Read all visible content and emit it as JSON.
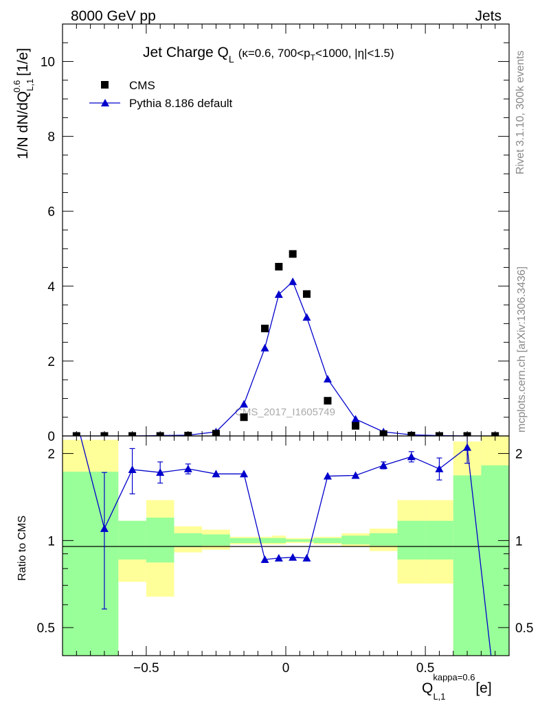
{
  "header": {
    "left": "8000 GeV pp",
    "right": "Jets"
  },
  "side_labels": {
    "rivet": "Rivet 3.1.10,  300k events",
    "mcplots": "mcplots.cern.ch [arXiv:1306.3436]"
  },
  "watermark": "CMS_2017_I1605749",
  "title": {
    "main": "Jet Charge Q",
    "main_sub": "L",
    "cond": "(κ=0.6, 700<p",
    "cond_sub": "T",
    "cond_tail": "<1000, |η|<1.5)"
  },
  "axes": {
    "ylabel": {
      "pre": "1/N dN/dQ",
      "sup": "0.6",
      "sub": "L,1",
      "post": " [1/e]"
    },
    "ratio_ylabel": "Ratio to CMS",
    "xlabel": {
      "pre": "Q",
      "sup": "kappa=0.6",
      "sub": "L,1",
      "post": " [e]"
    }
  },
  "legend": [
    {
      "label": "CMS",
      "marker": "square",
      "color": "#000000"
    },
    {
      "label": "Pythia 8.186 default",
      "marker": "triangle",
      "color": "#0000cc"
    }
  ],
  "colors": {
    "mc": "#0000cc",
    "data": "#000000",
    "band_inner": "#99ff99",
    "band_outer": "#ffff99"
  },
  "chart_data": {
    "type": "scatter",
    "x_ticks": [
      "−0.5",
      "0",
      "0.5"
    ],
    "main": {
      "xlim": [
        -0.8,
        0.8
      ],
      "ylim": [
        0,
        11
      ],
      "y_ticks": [
        "0",
        "2",
        "4",
        "6",
        "8",
        "10"
      ],
      "series": [
        {
          "name": "CMS",
          "x": [
            -0.75,
            -0.65,
            -0.55,
            -0.45,
            -0.35,
            -0.25,
            -0.15,
            -0.075,
            -0.025,
            0.025,
            0.075,
            0.15,
            0.25,
            0.35,
            0.45,
            0.55,
            0.65,
            0.75
          ],
          "y": [
            0.0,
            0.0,
            0.0,
            0.0,
            0.01,
            0.06,
            0.5,
            2.87,
            4.52,
            4.86,
            3.79,
            0.94,
            0.27,
            0.05,
            0.01,
            0.0,
            0.0,
            0.0
          ]
        },
        {
          "name": "Pythia 8.186 default",
          "x": [
            -0.75,
            -0.65,
            -0.55,
            -0.45,
            -0.35,
            -0.25,
            -0.15,
            -0.075,
            -0.025,
            0.025,
            0.075,
            0.15,
            0.25,
            0.35,
            0.45,
            0.55,
            0.65,
            0.75
          ],
          "y": [
            0.0,
            0.0,
            0.0,
            0.01,
            0.02,
            0.11,
            0.85,
            2.35,
            3.78,
            4.12,
            3.17,
            1.52,
            0.45,
            0.11,
            0.03,
            0.01,
            0.0,
            0.0
          ]
        }
      ]
    },
    "ratio": {
      "ylim": [
        0.4,
        2.3
      ],
      "log": true,
      "y_ticks": [
        "0.5",
        "1",
        "2"
      ],
      "mc": {
        "x": [
          -0.75,
          -0.65,
          -0.55,
          -0.45,
          -0.35,
          -0.25,
          -0.15,
          -0.075,
          -0.025,
          0.025,
          0.075,
          0.15,
          0.25,
          0.35,
          0.45,
          0.55,
          0.65,
          0.75
        ],
        "y": [
          2.6,
          1.1,
          1.76,
          1.72,
          1.77,
          1.7,
          1.7,
          0.86,
          0.87,
          0.875,
          0.87,
          1.67,
          1.68,
          1.82,
          1.95,
          1.77,
          2.1,
          0.3
        ],
        "err_lo": [
          null,
          0.58,
          1.45,
          1.58,
          1.7,
          null,
          null,
          null,
          null,
          null,
          null,
          null,
          null,
          1.77,
          1.87,
          1.62,
          1.85,
          null
        ],
        "err_hi": [
          null,
          1.72,
          2.08,
          1.87,
          1.84,
          null,
          null,
          null,
          null,
          null,
          null,
          null,
          null,
          1.87,
          2.03,
          1.93,
          2.3,
          null
        ]
      },
      "bands": [
        {
          "x0": -0.8,
          "x1": -0.6,
          "inner": [
            0.3,
            1.73
          ],
          "outer": [
            0.3,
            2.23
          ]
        },
        {
          "x0": -0.6,
          "x1": -0.5,
          "inner": [
            0.86,
            1.17
          ],
          "outer": [
            0.72,
            1.17
          ]
        },
        {
          "x0": -0.5,
          "x1": -0.4,
          "inner": [
            0.84,
            1.2
          ],
          "outer": [
            0.64,
            1.38
          ]
        },
        {
          "x0": -0.4,
          "x1": -0.3,
          "inner": [
            0.95,
            1.06
          ],
          "outer": [
            0.91,
            1.12
          ]
        },
        {
          "x0": -0.3,
          "x1": -0.2,
          "inner": [
            0.96,
            1.05
          ],
          "outer": [
            0.93,
            1.09
          ]
        },
        {
          "x0": -0.2,
          "x1": -0.1,
          "inner": [
            0.98,
            1.02
          ],
          "outer": [
            0.97,
            1.03
          ]
        },
        {
          "x0": -0.1,
          "x1": -0.05,
          "inner": [
            0.98,
            1.02
          ],
          "outer": [
            0.97,
            1.03
          ]
        },
        {
          "x0": -0.05,
          "x1": 0.0,
          "inner": [
            0.98,
            1.02
          ],
          "outer": [
            0.97,
            1.04
          ]
        },
        {
          "x0": 0.0,
          "x1": 0.05,
          "inner": [
            0.99,
            1.01
          ],
          "outer": [
            0.98,
            1.02
          ]
        },
        {
          "x0": 0.05,
          "x1": 0.1,
          "inner": [
            0.99,
            1.01
          ],
          "outer": [
            0.98,
            1.02
          ]
        },
        {
          "x0": 0.1,
          "x1": 0.2,
          "inner": [
            0.98,
            1.02
          ],
          "outer": [
            0.97,
            1.03
          ]
        },
        {
          "x0": 0.2,
          "x1": 0.3,
          "inner": [
            0.97,
            1.04
          ],
          "outer": [
            0.95,
            1.06
          ]
        },
        {
          "x0": 0.3,
          "x1": 0.4,
          "inner": [
            0.96,
            1.06
          ],
          "outer": [
            0.92,
            1.1
          ]
        },
        {
          "x0": 0.4,
          "x1": 0.5,
          "inner": [
            0.86,
            1.17
          ],
          "outer": [
            0.71,
            1.38
          ]
        },
        {
          "x0": 0.5,
          "x1": 0.6,
          "inner": [
            0.86,
            1.17
          ],
          "outer": [
            0.71,
            1.38
          ]
        },
        {
          "x0": 0.6,
          "x1": 0.7,
          "inner": [
            0.3,
            1.68
          ],
          "outer": [
            0.3,
            2.2
          ]
        },
        {
          "x0": 0.7,
          "x1": 0.8,
          "inner": [
            0.3,
            1.82
          ],
          "outer": [
            0.3,
            2.35
          ]
        }
      ]
    }
  }
}
